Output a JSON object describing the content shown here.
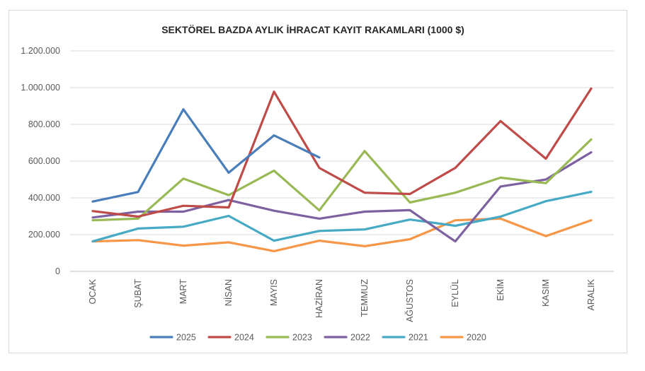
{
  "chart_data": {
    "type": "line",
    "title": "SEKTÖREL BAZDA AYLIK İHRACAT KAYIT RAKAMLARI (1000 $)",
    "xlabel": "",
    "ylabel": "",
    "categories": [
      "OCAK",
      "ŞUBAT",
      "MART",
      "NİSAN",
      "MAYIS",
      "HAZİRAN",
      "TEMMUZ",
      "AĞUSTOS",
      "EYLÜL",
      "EKİM",
      "KASIM",
      "ARALIK"
    ],
    "ylim": [
      0,
      1200000
    ],
    "yticks": [
      0,
      200000,
      400000,
      600000,
      800000,
      1000000,
      1200000
    ],
    "ytick_labels": [
      "0",
      "200.000",
      "400.000",
      "600.000",
      "800.000",
      "1.000.000",
      "1.200.000"
    ],
    "grid": true,
    "legend_position": "bottom",
    "series": [
      {
        "name": "2025",
        "color": "#4a7ebb",
        "values": [
          380000,
          432000,
          882000,
          537000,
          740000,
          620000,
          null,
          null,
          null,
          null,
          null,
          null
        ]
      },
      {
        "name": "2024",
        "color": "#be4b48",
        "values": [
          328000,
          298000,
          357000,
          348000,
          978000,
          563000,
          428000,
          421000,
          563000,
          818000,
          613000,
          995000
        ]
      },
      {
        "name": "2023",
        "color": "#98b954",
        "values": [
          278000,
          287000,
          505000,
          415000,
          548000,
          332000,
          655000,
          375000,
          428000,
          510000,
          480000,
          718000
        ]
      },
      {
        "name": "2022",
        "color": "#7d60a0",
        "values": [
          293000,
          325000,
          325000,
          388000,
          330000,
          287000,
          325000,
          333000,
          163000,
          462000,
          500000,
          648000
        ]
      },
      {
        "name": "2021",
        "color": "#46aac5",
        "values": [
          163000,
          233000,
          243000,
          302000,
          167000,
          220000,
          228000,
          282000,
          248000,
          298000,
          382000,
          433000
        ]
      },
      {
        "name": "2020",
        "color": "#f79646",
        "values": [
          163000,
          170000,
          140000,
          158000,
          110000,
          167000,
          137000,
          175000,
          278000,
          287000,
          192000,
          278000
        ]
      }
    ]
  }
}
